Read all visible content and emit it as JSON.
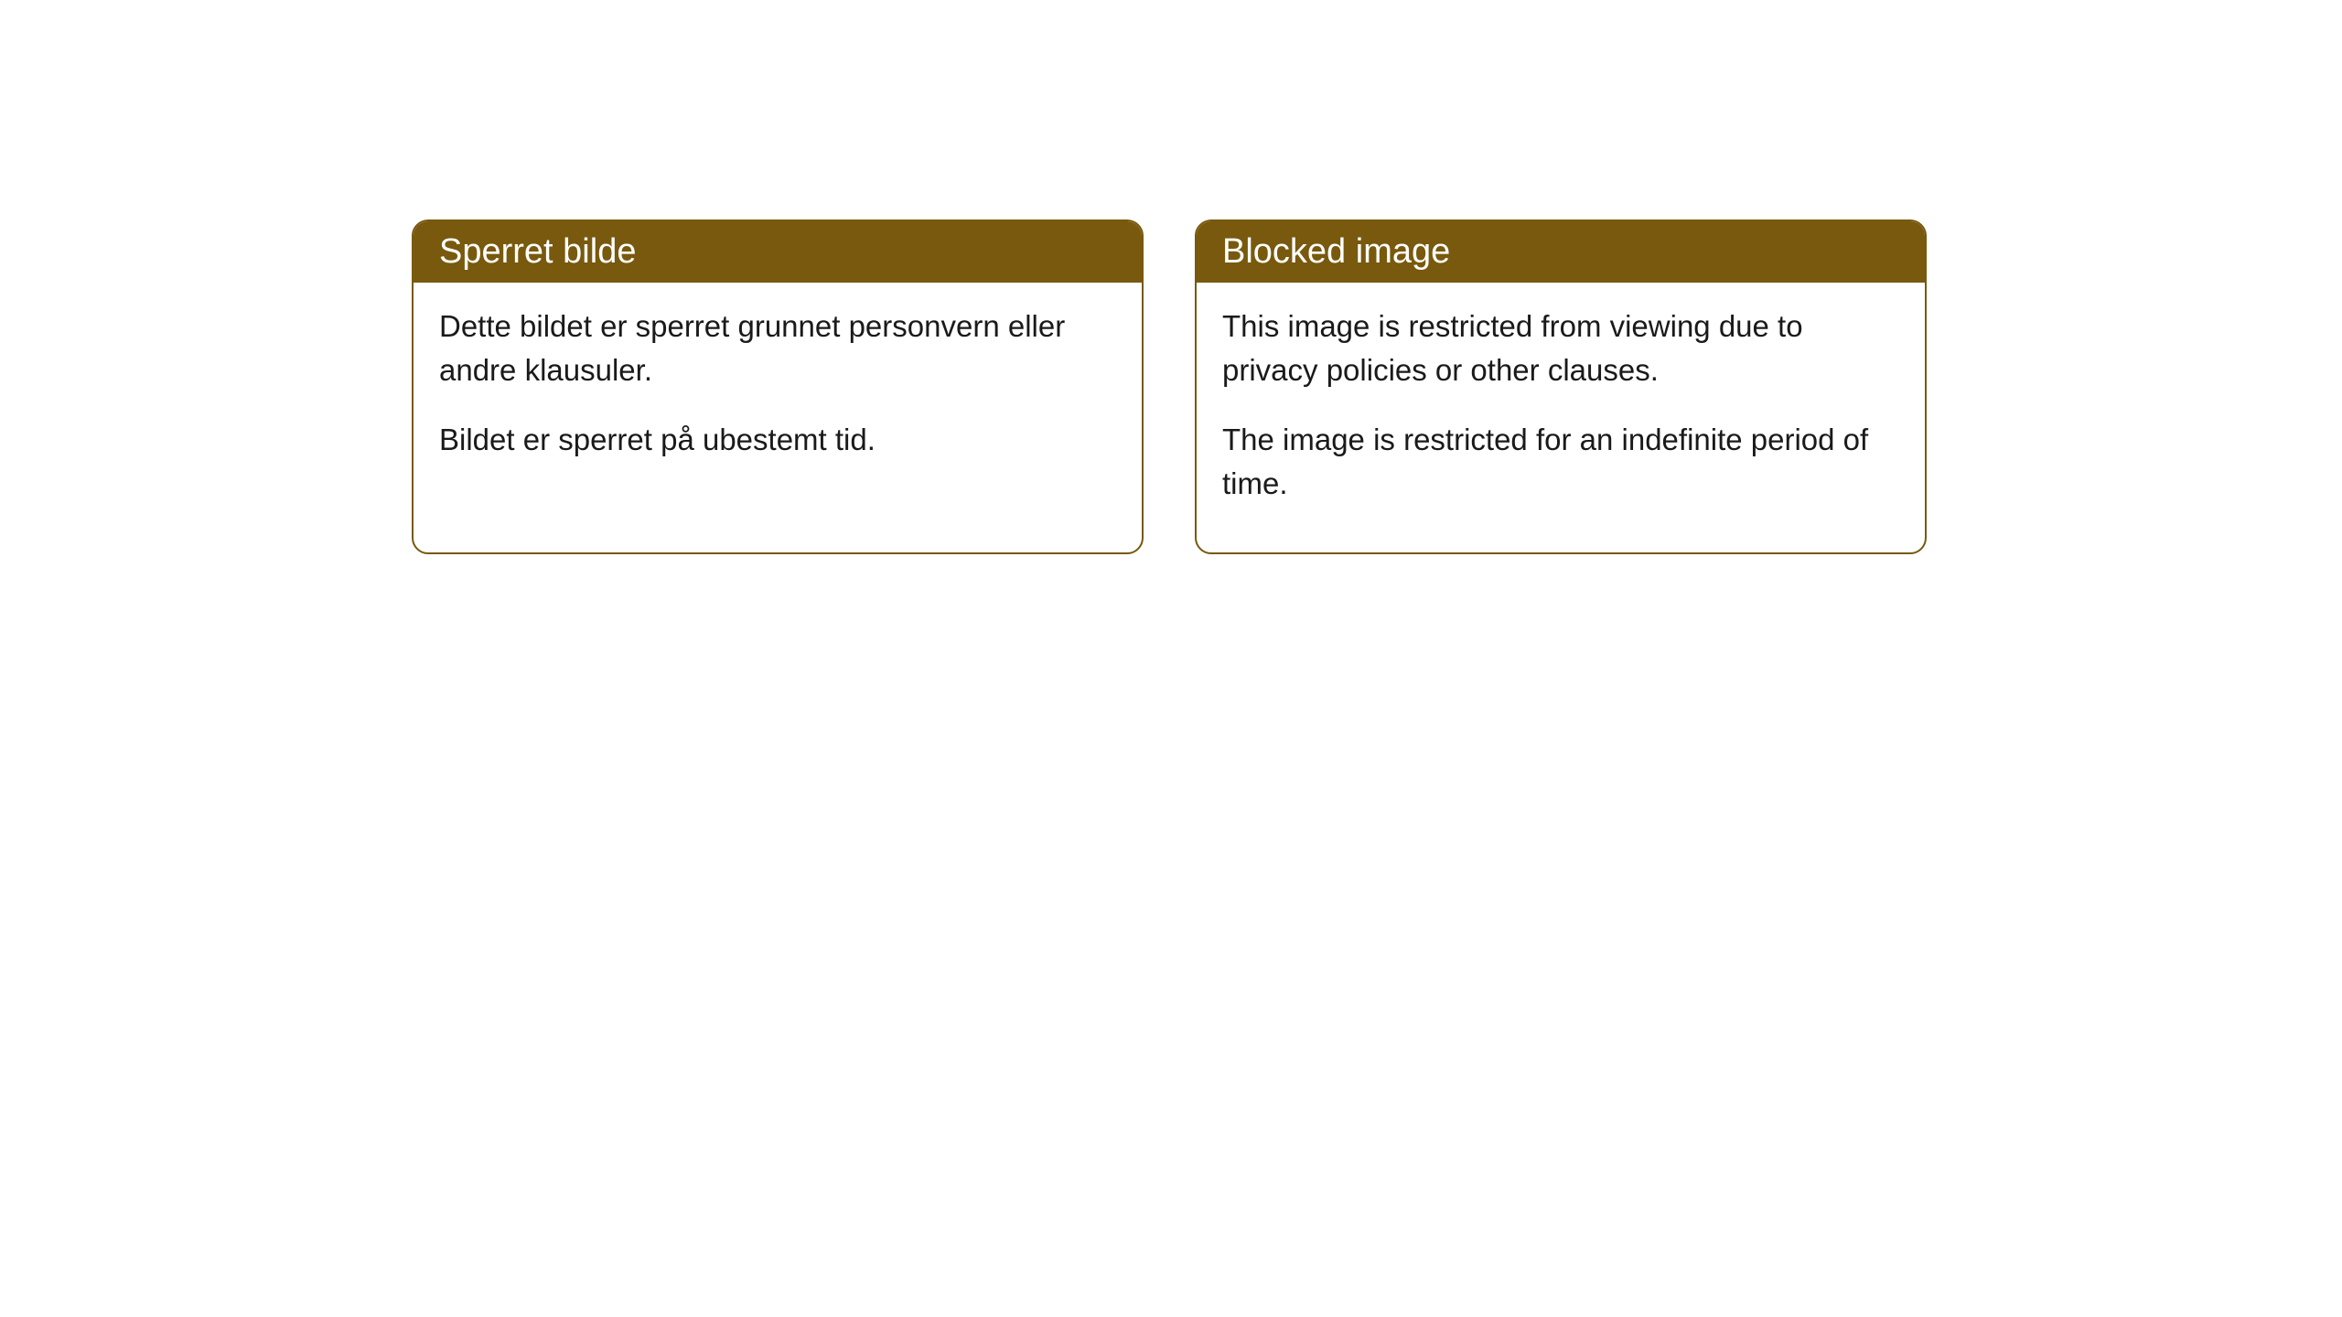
{
  "cards": [
    {
      "title": "Sperret bilde",
      "paragraph1": "Dette bildet er sperret grunnet personvern eller andre klausuler.",
      "paragraph2": "Bildet er sperret på ubestemt tid."
    },
    {
      "title": "Blocked image",
      "paragraph1": "This image is restricted from viewing due to privacy policies or other clauses.",
      "paragraph2": "The image is restricted for an indefinite period of time."
    }
  ],
  "styling": {
    "header_background": "#78590d",
    "header_text_color": "#ffffff",
    "border_color": "#78590d",
    "body_background": "#ffffff",
    "body_text_color": "#1a1a1a",
    "border_radius": "18px",
    "title_fontsize": 38,
    "body_fontsize": 33
  }
}
